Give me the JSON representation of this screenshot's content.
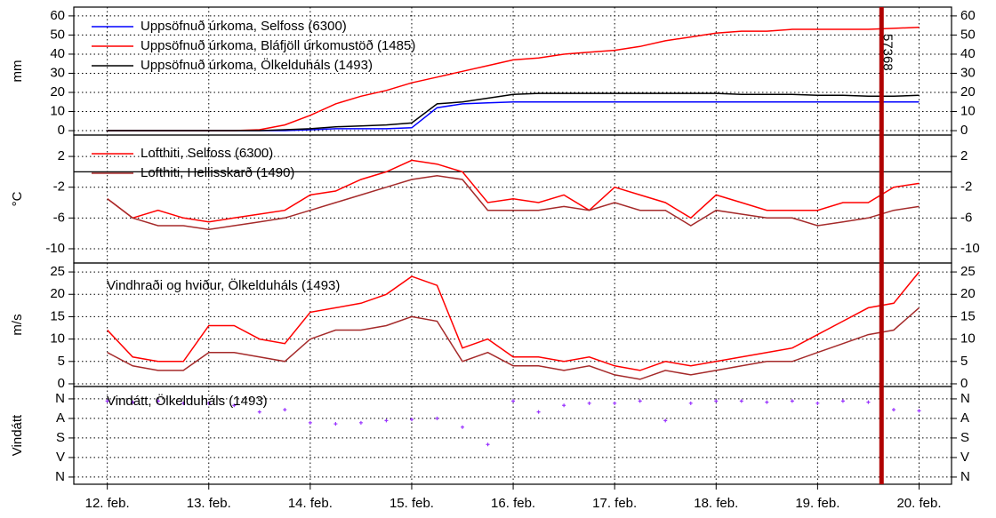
{
  "chart_data": [
    {
      "type": "line",
      "ylabel": "mm",
      "x": [
        0,
        0.25,
        0.5,
        0.75,
        1,
        1.25,
        1.5,
        1.75,
        2,
        2.25,
        2.5,
        2.75,
        3,
        3.25,
        3.5,
        3.75,
        4,
        4.25,
        4.5,
        4.75,
        5,
        5.25,
        5.5,
        5.75,
        6,
        6.25,
        6.5,
        6.75,
        7,
        7.25,
        7.5,
        7.75,
        8
      ],
      "xlim": [
        -0.33,
        8.32
      ],
      "ylim": [
        -2.3,
        64.6
      ],
      "yticks": [
        0,
        10,
        20,
        30,
        40,
        50,
        60
      ],
      "grid": true,
      "legend": "upper left",
      "series": [
        {
          "name": "Uppsöfnuð úrkoma, Selfoss (6300)",
          "color": "#0000ff",
          "values": [
            0,
            0,
            0,
            0,
            0,
            0,
            0,
            0,
            0.5,
            1,
            1,
            1,
            1.5,
            12,
            14,
            14.5,
            15,
            15,
            15,
            15,
            15,
            15,
            15,
            15,
            15,
            15,
            15,
            15,
            15,
            15,
            15,
            15,
            15
          ]
        },
        {
          "name": "Uppsöfnuð úrkoma, Bláfjöll úrkomustöð (1485)",
          "color": "#ff0000",
          "values": [
            0,
            0,
            0,
            0,
            0,
            0,
            0.5,
            3,
            8,
            14,
            18,
            21,
            25,
            28,
            31,
            34,
            37,
            38,
            40,
            41,
            42,
            44,
            47,
            49,
            51,
            52,
            52,
            53,
            53,
            53,
            53,
            53.5,
            54
          ]
        },
        {
          "name": "Uppsöfnuð úrkoma, Ölkelduháls (1493)",
          "color": "#000000",
          "values": [
            0,
            0,
            0,
            0,
            0,
            0,
            0,
            0.5,
            1,
            2,
            2.5,
            3,
            4,
            14,
            15,
            17,
            19,
            19.5,
            19.5,
            19.5,
            19.5,
            19.5,
            19.5,
            19.5,
            19.5,
            19,
            19,
            19,
            18.5,
            18.5,
            18,
            18,
            18.5
          ]
        }
      ]
    },
    {
      "type": "line",
      "ylabel": "°C",
      "x": [
        0,
        0.25,
        0.5,
        0.75,
        1,
        1.25,
        1.5,
        1.75,
        2,
        2.25,
        2.5,
        2.75,
        3,
        3.25,
        3.5,
        3.75,
        4,
        4.25,
        4.5,
        4.75,
        5,
        5.25,
        5.5,
        5.75,
        6,
        6.25,
        6.5,
        6.75,
        7,
        7.25,
        7.5,
        7.75,
        8
      ],
      "xlim": [
        -0.33,
        8.32
      ],
      "ylim": [
        -11.85,
        4.78
      ],
      "yticks": [
        2,
        -2,
        -6,
        -10
      ],
      "grid": true,
      "legend": "upper left",
      "series": [
        {
          "name": "Lofthiti, Selfoss (6300)",
          "color": "#ff0000",
          "values": [
            -3.5,
            -6,
            -5,
            -6,
            -6.5,
            -6,
            -5.5,
            -5,
            -3,
            -2.5,
            -1,
            0,
            1.5,
            1,
            0,
            -4,
            -3.5,
            -4,
            -3,
            -5,
            -2,
            -3,
            -4,
            -6,
            -3,
            -4,
            -5,
            -5,
            -5,
            -4,
            -4,
            -2,
            -1.5
          ]
        },
        {
          "name": "Lofthiti, Hellisskarð (1490)",
          "color": "#a52a2a",
          "values": [
            -3.5,
            -6,
            -7,
            -7,
            -7.5,
            -7,
            -6.5,
            -6,
            -5,
            -4,
            -3,
            -2,
            -1,
            -0.5,
            -1,
            -5,
            -5,
            -5,
            -4.5,
            -5,
            -4,
            -5,
            -5,
            -7,
            -5,
            -5.5,
            -6,
            -6,
            -7,
            -6.5,
            -6,
            -5,
            -4.5
          ]
        }
      ]
    },
    {
      "type": "line",
      "ylabel": "m/s",
      "title": "Vindhraði og hviður, Ölkelduháls (1493)",
      "x": [
        0,
        0.25,
        0.5,
        0.75,
        1,
        1.25,
        1.5,
        1.75,
        2,
        2.25,
        2.5,
        2.75,
        3,
        3.25,
        3.5,
        3.75,
        4,
        4.25,
        4.5,
        4.75,
        5,
        5.25,
        5.5,
        5.75,
        6,
        6.25,
        6.5,
        6.75,
        7,
        7.25,
        7.5,
        7.75,
        8
      ],
      "xlim": [
        -0.33,
        8.32
      ],
      "ylim": [
        -0.6,
        27
      ],
      "yticks": [
        0,
        5,
        10,
        15,
        20,
        25
      ],
      "grid": true,
      "series": [
        {
          "color": "#ff0000",
          "values": [
            12,
            6,
            5,
            5,
            13,
            13,
            10,
            9,
            16,
            17,
            18,
            20,
            24,
            22,
            8,
            10,
            6,
            6,
            5,
            6,
            4,
            3,
            5,
            4,
            5,
            6,
            7,
            8,
            11,
            14,
            17,
            18,
            25
          ]
        },
        {
          "color": "#a52a2a",
          "values": [
            7,
            4,
            3,
            3,
            7,
            7,
            6,
            5,
            10,
            12,
            12,
            13,
            15,
            14,
            5,
            7,
            4,
            4,
            3,
            4,
            2,
            1,
            3,
            2,
            3,
            4,
            5,
            5,
            7,
            9,
            11,
            12,
            17
          ]
        }
      ]
    },
    {
      "type": "scatter",
      "ylabel": "Vindátt",
      "title": "Vindátt, Ölkelduháls (1493)",
      "x": [
        0,
        0.25,
        0.5,
        0.75,
        1,
        1.25,
        1.5,
        1.75,
        2,
        2.25,
        2.5,
        2.75,
        3,
        3.25,
        3.5,
        3.75,
        4,
        4.25,
        4.5,
        4.75,
        5,
        5.25,
        5.5,
        5.75,
        6,
        6.25,
        6.5,
        6.75,
        7,
        7.25,
        7.5,
        7.75,
        8
      ],
      "xlim": [
        -0.33,
        8.32
      ],
      "ylim": [
        393,
        -57
      ],
      "grid": true,
      "yticks": [
        {
          "value": 0,
          "label": "N"
        },
        {
          "value": 90,
          "label": "A"
        },
        {
          "value": 180,
          "label": "S"
        },
        {
          "value": 270,
          "label": "V"
        },
        {
          "value": 360,
          "label": "N"
        }
      ],
      "xticks": [
        {
          "value": 0,
          "label": "12. feb."
        },
        {
          "value": 1,
          "label": "13. feb."
        },
        {
          "value": 2,
          "label": "14. feb."
        },
        {
          "value": 3,
          "label": "15. feb."
        },
        {
          "value": 4,
          "label": "16. feb."
        },
        {
          "value": 5,
          "label": "17. feb."
        },
        {
          "value": 6,
          "label": "18. feb."
        },
        {
          "value": 7,
          "label": "19. feb."
        },
        {
          "value": 8,
          "label": "20. feb."
        }
      ],
      "color": "#9933ff",
      "values": [
        10,
        15,
        10,
        20,
        20,
        30,
        60,
        50,
        110,
        115,
        110,
        100,
        95,
        90,
        130,
        210,
        10,
        60,
        30,
        20,
        20,
        10,
        100,
        20,
        10,
        10,
        15,
        10,
        20,
        10,
        15,
        50,
        55
      ]
    }
  ],
  "marker": {
    "x": 7.63,
    "label": "57368",
    "color": "#b00000"
  }
}
